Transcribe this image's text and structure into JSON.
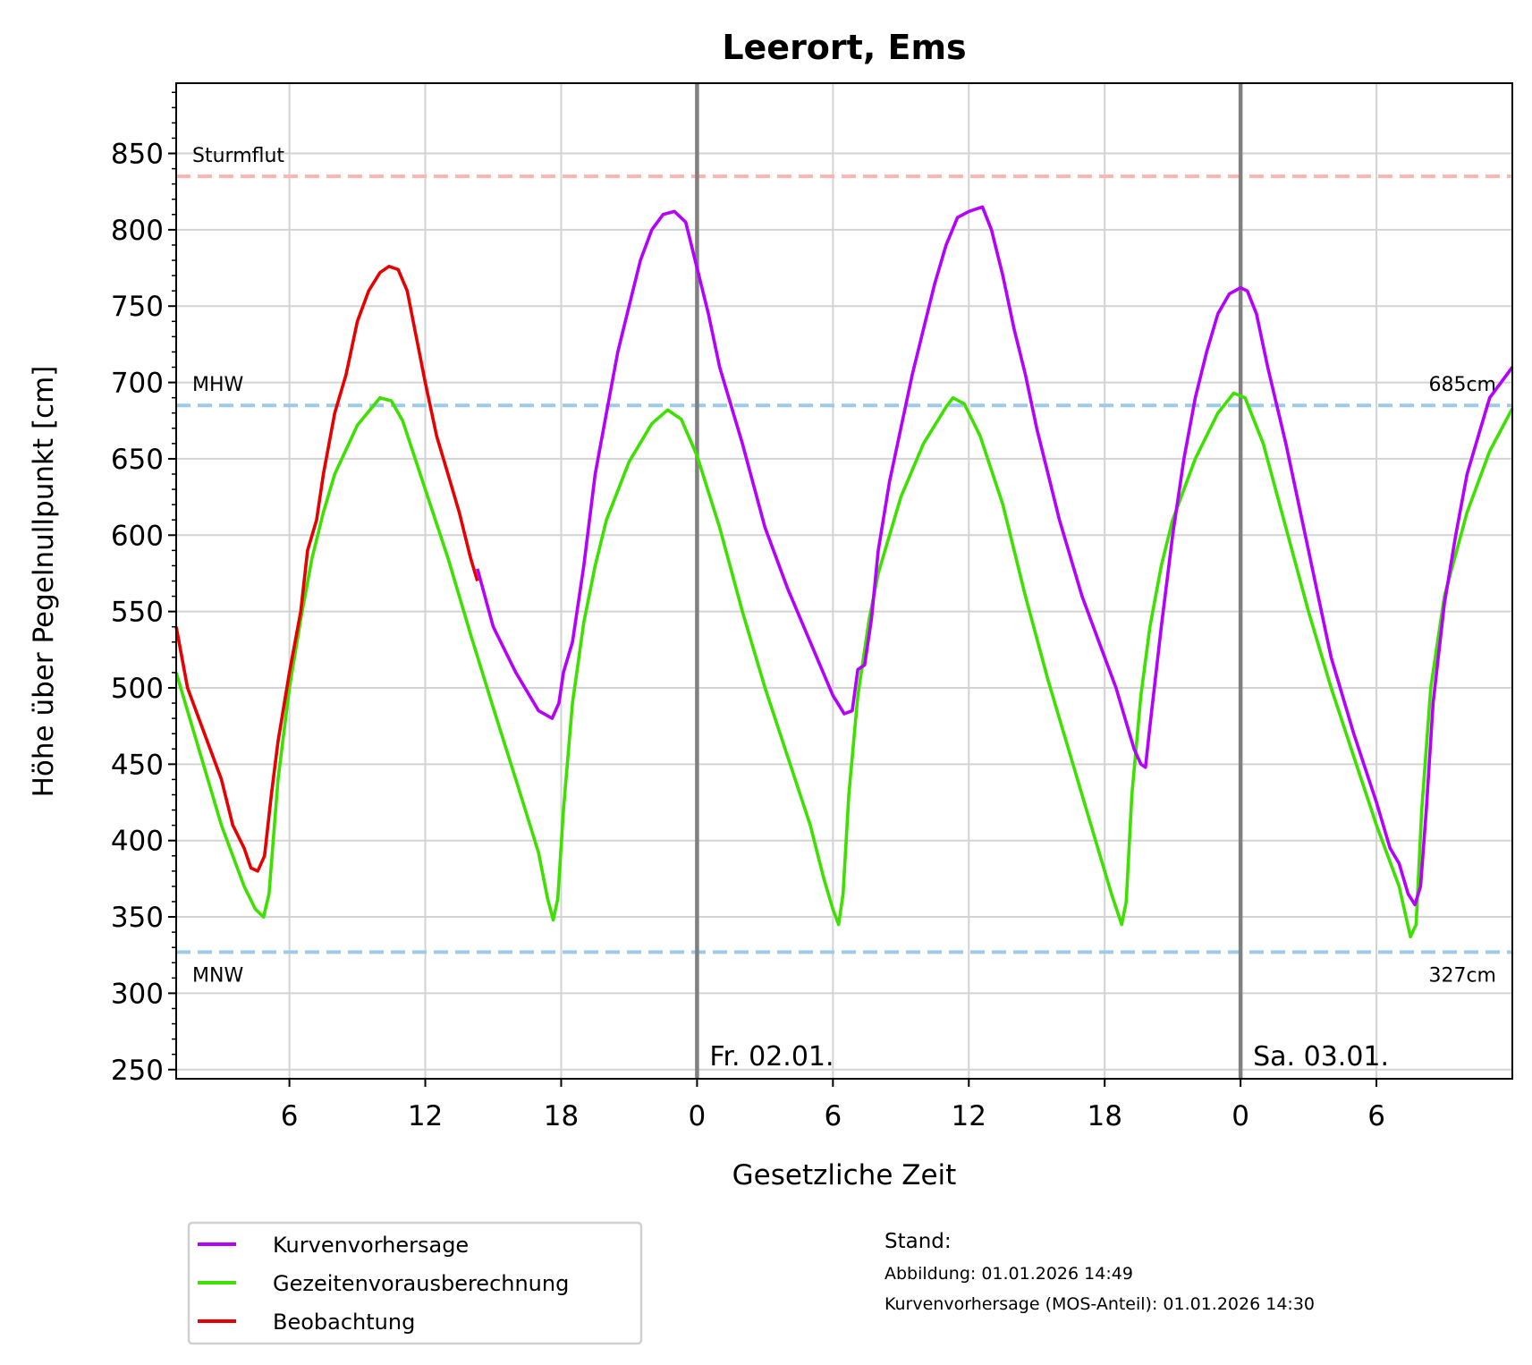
{
  "chart_data": {
    "type": "line",
    "title": "Leerort, Ems",
    "xlabel": "Gesetzliche Zeit",
    "ylabel": "Höhe über Pegelnullpunkt [cm]",
    "x_unit": "hours since Thu 00:00",
    "xlim": [
      1,
      60
    ],
    "ylim": [
      244,
      896
    ],
    "grid": true,
    "y_ticks": [
      250,
      300,
      350,
      400,
      450,
      500,
      550,
      600,
      650,
      700,
      750,
      800,
      850
    ],
    "x_ticks": [
      {
        "x": 6,
        "label": "6"
      },
      {
        "x": 12,
        "label": "12"
      },
      {
        "x": 18,
        "label": "18"
      },
      {
        "x": 24,
        "label": "0"
      },
      {
        "x": 30,
        "label": "6"
      },
      {
        "x": 36,
        "label": "12"
      },
      {
        "x": 42,
        "label": "18"
      },
      {
        "x": 48,
        "label": "0"
      },
      {
        "x": 54,
        "label": "6"
      }
    ],
    "day_lines": [
      {
        "x": 24,
        "label": "Fr. 02.01."
      },
      {
        "x": 48,
        "label": "Sa. 03.01."
      }
    ],
    "reference_lines": [
      {
        "name": "Sturmflut",
        "y": 835,
        "color": "#ffb3b3",
        "label": "Sturmflut",
        "value_label": ""
      },
      {
        "name": "MHW",
        "y": 685,
        "color": "#9ecae9",
        "label": "MHW",
        "value_label": "685cm"
      },
      {
        "name": "MNW",
        "y": 327,
        "color": "#9ecae9",
        "label": "MNW",
        "value_label": "327cm"
      }
    ],
    "series": [
      {
        "name": "Gezeitenvorausberechnung",
        "color": "#3ee000",
        "points": [
          [
            1,
            510
          ],
          [
            2,
            460
          ],
          [
            3,
            410
          ],
          [
            4,
            370
          ],
          [
            4.5,
            355
          ],
          [
            4.86,
            350
          ],
          [
            5.1,
            365
          ],
          [
            5.5,
            440
          ],
          [
            6,
            500
          ],
          [
            6.5,
            545
          ],
          [
            7,
            585
          ],
          [
            7.5,
            615
          ],
          [
            8,
            640
          ],
          [
            9,
            672
          ],
          [
            10,
            690
          ],
          [
            10.5,
            688
          ],
          [
            11,
            675
          ],
          [
            12,
            630
          ],
          [
            13,
            585
          ],
          [
            14,
            535
          ],
          [
            15,
            487
          ],
          [
            16,
            440
          ],
          [
            17,
            392
          ],
          [
            17.4,
            362
          ],
          [
            17.65,
            348
          ],
          [
            17.85,
            362
          ],
          [
            18.1,
            420
          ],
          [
            18.5,
            490
          ],
          [
            19,
            543
          ],
          [
            19.5,
            580
          ],
          [
            20,
            610
          ],
          [
            21,
            648
          ],
          [
            22,
            673
          ],
          [
            22.7,
            682
          ],
          [
            23.3,
            676
          ],
          [
            24,
            652
          ],
          [
            25,
            605
          ],
          [
            26,
            550
          ],
          [
            27,
            500
          ],
          [
            28,
            455
          ],
          [
            29,
            410
          ],
          [
            29.6,
            375
          ],
          [
            30,
            355
          ],
          [
            30.25,
            345
          ],
          [
            30.45,
            365
          ],
          [
            30.7,
            430
          ],
          [
            31.1,
            495
          ],
          [
            31.6,
            545
          ],
          [
            32,
            575
          ],
          [
            33,
            625
          ],
          [
            34,
            660
          ],
          [
            35,
            684
          ],
          [
            35.3,
            690
          ],
          [
            35.8,
            686
          ],
          [
            36.5,
            665
          ],
          [
            37.5,
            620
          ],
          [
            38.5,
            560
          ],
          [
            39.5,
            505
          ],
          [
            40.5,
            455
          ],
          [
            41.5,
            405
          ],
          [
            42.3,
            365
          ],
          [
            42.75,
            345
          ],
          [
            42.95,
            360
          ],
          [
            43.2,
            430
          ],
          [
            43.6,
            495
          ],
          [
            44,
            540
          ],
          [
            44.5,
            580
          ],
          [
            45,
            610
          ],
          [
            46,
            650
          ],
          [
            47,
            680
          ],
          [
            47.7,
            693
          ],
          [
            48.2,
            690
          ],
          [
            49,
            660
          ],
          [
            50,
            605
          ],
          [
            51,
            550
          ],
          [
            52,
            500
          ],
          [
            53,
            455
          ],
          [
            54,
            410
          ],
          [
            55,
            370
          ],
          [
            55.5,
            337
          ],
          [
            55.75,
            345
          ],
          [
            56,
            420
          ],
          [
            56.4,
            500
          ],
          [
            57,
            560
          ],
          [
            58,
            615
          ],
          [
            59,
            655
          ],
          [
            60,
            683
          ]
        ]
      },
      {
        "name": "Beobachtung",
        "color": "#e60000",
        "points": [
          [
            1,
            540
          ],
          [
            1.5,
            500
          ],
          [
            2,
            480
          ],
          [
            3,
            440
          ],
          [
            3.5,
            410
          ],
          [
            4,
            395
          ],
          [
            4.3,
            382
          ],
          [
            4.6,
            380
          ],
          [
            4.9,
            390
          ],
          [
            5.2,
            430
          ],
          [
            5.5,
            465
          ],
          [
            6,
            510
          ],
          [
            6.5,
            550
          ],
          [
            6.8,
            590
          ],
          [
            7.2,
            610
          ],
          [
            7.5,
            640
          ],
          [
            8,
            680
          ],
          [
            8.5,
            705
          ],
          [
            9,
            740
          ],
          [
            9.5,
            760
          ],
          [
            10,
            772
          ],
          [
            10.4,
            776
          ],
          [
            10.8,
            774
          ],
          [
            11.2,
            760
          ],
          [
            11.6,
            730
          ],
          [
            12,
            700
          ],
          [
            12.5,
            665
          ],
          [
            13,
            640
          ],
          [
            13.5,
            615
          ],
          [
            14,
            585
          ],
          [
            14.3,
            570
          ]
        ]
      },
      {
        "name": "Kurvenvorhersage",
        "color": "#b300ff",
        "points": [
          [
            14.3,
            578
          ],
          [
            15,
            540
          ],
          [
            16,
            510
          ],
          [
            17,
            485
          ],
          [
            17.6,
            480
          ],
          [
            17.9,
            490
          ],
          [
            18.1,
            510
          ],
          [
            18.5,
            530
          ],
          [
            19,
            580
          ],
          [
            19.5,
            640
          ],
          [
            20,
            680
          ],
          [
            20.5,
            720
          ],
          [
            21,
            750
          ],
          [
            21.5,
            780
          ],
          [
            22,
            800
          ],
          [
            22.5,
            810
          ],
          [
            23,
            812
          ],
          [
            23.5,
            805
          ],
          [
            24,
            775
          ],
          [
            24.5,
            745
          ],
          [
            25,
            710
          ],
          [
            26,
            660
          ],
          [
            27,
            605
          ],
          [
            28,
            565
          ],
          [
            29,
            530
          ],
          [
            30,
            495
          ],
          [
            30.5,
            483
          ],
          [
            30.85,
            485
          ],
          [
            31.1,
            512
          ],
          [
            31.4,
            515
          ],
          [
            31.7,
            545
          ],
          [
            32,
            590
          ],
          [
            32.5,
            635
          ],
          [
            33,
            670
          ],
          [
            33.5,
            705
          ],
          [
            34,
            735
          ],
          [
            34.5,
            765
          ],
          [
            35,
            790
          ],
          [
            35.5,
            808
          ],
          [
            36,
            812
          ],
          [
            36.6,
            815
          ],
          [
            37,
            800
          ],
          [
            37.5,
            770
          ],
          [
            38,
            735
          ],
          [
            38.5,
            705
          ],
          [
            39,
            670
          ],
          [
            40,
            610
          ],
          [
            41,
            560
          ],
          [
            42,
            520
          ],
          [
            42.5,
            500
          ],
          [
            43,
            475
          ],
          [
            43.3,
            460
          ],
          [
            43.6,
            450
          ],
          [
            43.8,
            448
          ],
          [
            44,
            475
          ],
          [
            44.5,
            540
          ],
          [
            45,
            600
          ],
          [
            45.5,
            650
          ],
          [
            46,
            690
          ],
          [
            46.5,
            720
          ],
          [
            47,
            745
          ],
          [
            47.5,
            758
          ],
          [
            48,
            762
          ],
          [
            48.3,
            760
          ],
          [
            48.7,
            745
          ],
          [
            49.2,
            710
          ],
          [
            50,
            660
          ],
          [
            51,
            590
          ],
          [
            52,
            520
          ],
          [
            53,
            470
          ],
          [
            54,
            425
          ],
          [
            54.6,
            395
          ],
          [
            55,
            385
          ],
          [
            55.4,
            365
          ],
          [
            55.7,
            358
          ],
          [
            55.95,
            370
          ],
          [
            56.2,
            420
          ],
          [
            56.5,
            490
          ],
          [
            57,
            555
          ],
          [
            57.5,
            600
          ],
          [
            58,
            640
          ],
          [
            58.5,
            665
          ],
          [
            59,
            690
          ],
          [
            60,
            710
          ]
        ]
      }
    ],
    "legend": {
      "placement": "bottom-left",
      "entries": [
        {
          "label": "Kurvenvorhersage",
          "color": "#b300ff"
        },
        {
          "label": "Gezeitenvorausberechnung",
          "color": "#3ee000"
        },
        {
          "label": "Beobachtung",
          "color": "#e60000"
        }
      ]
    },
    "annotations": {
      "stand_title": "Stand:",
      "abbildung": "Abbildung: 01.01.2026 14:49",
      "mos": "Kurvenvorhersage (MOS-Anteil): 01.01.2026 14:30"
    }
  }
}
